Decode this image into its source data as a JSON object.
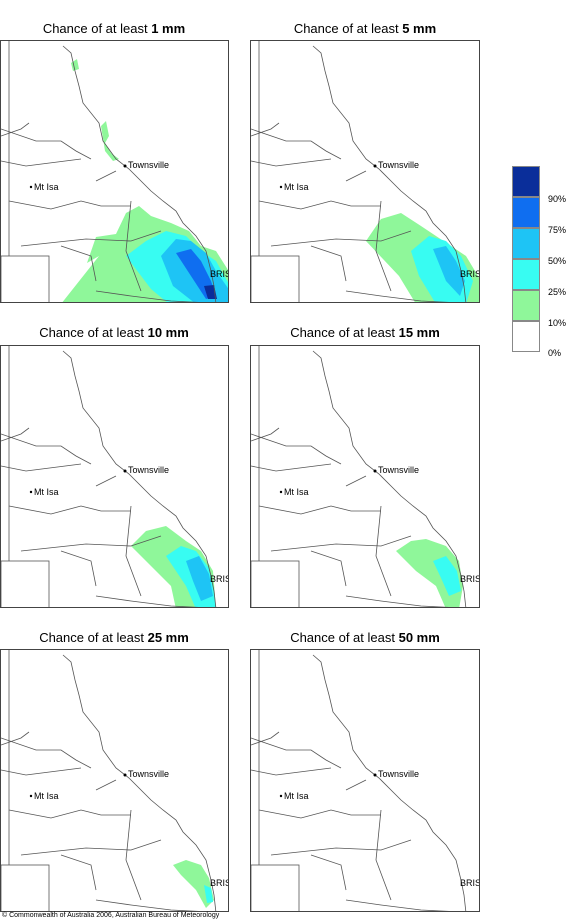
{
  "panels": [
    {
      "title_prefix": "Chance of at least ",
      "amount": "1 mm",
      "cities": [
        "Townsville",
        "Mt Isa",
        "BRIS"
      ]
    },
    {
      "title_prefix": "Chance of at least ",
      "amount": "5 mm",
      "cities": [
        "Townsville",
        "Mt Isa",
        "BRIS"
      ]
    },
    {
      "title_prefix": "Chance of at least ",
      "amount": "10 mm",
      "cities": [
        "Townsville",
        "Mt Isa",
        "BRIS"
      ]
    },
    {
      "title_prefix": "Chance of at least ",
      "amount": "15 mm",
      "cities": [
        "Townsville",
        "Mt Isa",
        "BRIS"
      ]
    },
    {
      "title_prefix": "Chance of at least ",
      "amount": "25 mm",
      "cities": [
        "Townsville",
        "Mt Isa",
        "BRIS"
      ]
    },
    {
      "title_prefix": "Chance of at least ",
      "amount": "50 mm",
      "cities": [
        "Townsville",
        "Mt Isa",
        "BRIS"
      ]
    }
  ],
  "legend": {
    "labels": [
      "90%",
      "75%",
      "50%",
      "25%",
      "10%",
      "0%"
    ],
    "colors": [
      "#0a2e9a",
      "#0f6ef0",
      "#1ec4f5",
      "#38fcf2",
      "#8ff79a",
      "#ffffff"
    ]
  },
  "copyright": "© Commonwealth of Australia 2006, Australian Bureau of Meteorology"
}
